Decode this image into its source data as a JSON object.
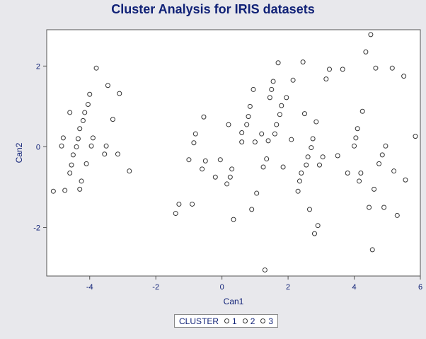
{
  "chart_data": {
    "type": "scatter",
    "title": "Cluster Analysis for IRIS datasets",
    "xlabel": "Can1",
    "ylabel": "Can2",
    "xlim": [
      -5.3,
      6.0
    ],
    "ylim": [
      -3.2,
      2.9
    ],
    "xticks": [
      -4,
      -2,
      0,
      2,
      4,
      6
    ],
    "xtick_labels": [
      "-4",
      "-2",
      "0",
      "2",
      "4",
      "6"
    ],
    "yticks": [
      -2,
      0,
      2
    ],
    "ytick_labels": [
      "-2",
      "0",
      "2"
    ],
    "grid": false,
    "legend": {
      "title": "CLUSTER",
      "entries": [
        "1",
        "2",
        "3"
      ],
      "placement": "bottom-center"
    },
    "marker_color": "#333333",
    "points": [
      [
        -5.1,
        -1.1
      ],
      [
        -4.85,
        0.02
      ],
      [
        -4.8,
        0.22
      ],
      [
        -4.75,
        -1.08
      ],
      [
        -4.6,
        0.85
      ],
      [
        -4.6,
        -0.65
      ],
      [
        -4.55,
        -0.45
      ],
      [
        -4.5,
        -0.2
      ],
      [
        -4.4,
        0.0
      ],
      [
        -4.35,
        0.2
      ],
      [
        -4.3,
        0.45
      ],
      [
        -4.3,
        -1.05
      ],
      [
        -4.25,
        -0.85
      ],
      [
        -4.2,
        0.65
      ],
      [
        -4.15,
        0.85
      ],
      [
        -4.1,
        -0.42
      ],
      [
        -4.05,
        1.05
      ],
      [
        -4.0,
        1.3
      ],
      [
        -3.95,
        0.02
      ],
      [
        -3.9,
        0.22
      ],
      [
        -3.8,
        1.95
      ],
      [
        -3.55,
        -0.18
      ],
      [
        -3.5,
        0.02
      ],
      [
        -3.45,
        1.52
      ],
      [
        -3.3,
        0.68
      ],
      [
        -3.15,
        -0.18
      ],
      [
        -3.1,
        1.32
      ],
      [
        -2.8,
        -0.6
      ],
      [
        -1.4,
        -1.65
      ],
      [
        -1.3,
        -1.42
      ],
      [
        -1.0,
        -0.32
      ],
      [
        -0.9,
        -1.42
      ],
      [
        -0.85,
        0.1
      ],
      [
        -0.8,
        0.32
      ],
      [
        -0.6,
        -0.55
      ],
      [
        -0.55,
        0.74
      ],
      [
        -0.5,
        -0.35
      ],
      [
        -0.2,
        -0.75
      ],
      [
        -0.05,
        -0.32
      ],
      [
        0.15,
        -0.92
      ],
      [
        0.2,
        0.55
      ],
      [
        0.25,
        -0.75
      ],
      [
        0.3,
        -0.55
      ],
      [
        0.35,
        -1.8
      ],
      [
        0.6,
        0.12
      ],
      [
        0.6,
        0.35
      ],
      [
        0.75,
        0.55
      ],
      [
        0.8,
        0.75
      ],
      [
        0.85,
        1.0
      ],
      [
        0.9,
        -1.55
      ],
      [
        0.95,
        1.42
      ],
      [
        1.0,
        0.12
      ],
      [
        1.05,
        -1.15
      ],
      [
        1.2,
        0.32
      ],
      [
        1.25,
        -0.5
      ],
      [
        1.3,
        -3.05
      ],
      [
        1.35,
        -0.3
      ],
      [
        1.4,
        0.15
      ],
      [
        1.45,
        1.22
      ],
      [
        1.5,
        1.42
      ],
      [
        1.55,
        1.62
      ],
      [
        1.6,
        0.32
      ],
      [
        1.65,
        0.55
      ],
      [
        1.7,
        2.08
      ],
      [
        1.75,
        0.8
      ],
      [
        1.8,
        1.02
      ],
      [
        1.85,
        -0.5
      ],
      [
        1.95,
        1.22
      ],
      [
        2.1,
        0.18
      ],
      [
        2.15,
        1.65
      ],
      [
        2.3,
        -1.1
      ],
      [
        2.35,
        -0.85
      ],
      [
        2.4,
        -0.65
      ],
      [
        2.45,
        2.1
      ],
      [
        2.5,
        0.82
      ],
      [
        2.55,
        -0.45
      ],
      [
        2.6,
        -0.25
      ],
      [
        2.65,
        -1.55
      ],
      [
        2.7,
        -0.02
      ],
      [
        2.75,
        0.2
      ],
      [
        2.8,
        -2.15
      ],
      [
        2.85,
        0.62
      ],
      [
        2.9,
        -1.95
      ],
      [
        2.95,
        -0.45
      ],
      [
        3.05,
        -0.25
      ],
      [
        3.15,
        1.68
      ],
      [
        3.25,
        1.92
      ],
      [
        3.5,
        -0.22
      ],
      [
        3.65,
        1.92
      ],
      [
        3.8,
        -0.65
      ],
      [
        4.0,
        0.02
      ],
      [
        4.05,
        0.22
      ],
      [
        4.1,
        0.45
      ],
      [
        4.15,
        -0.85
      ],
      [
        4.2,
        -0.65
      ],
      [
        4.25,
        0.88
      ],
      [
        4.35,
        2.35
      ],
      [
        4.45,
        -1.5
      ],
      [
        4.5,
        2.78
      ],
      [
        4.55,
        -2.55
      ],
      [
        4.6,
        -1.05
      ],
      [
        4.65,
        1.95
      ],
      [
        4.75,
        -0.42
      ],
      [
        4.85,
        -0.2
      ],
      [
        4.9,
        -1.5
      ],
      [
        4.95,
        0.02
      ],
      [
        5.15,
        1.95
      ],
      [
        5.2,
        -0.6
      ],
      [
        5.3,
        -1.7
      ],
      [
        5.5,
        1.75
      ],
      [
        5.55,
        -0.82
      ],
      [
        5.85,
        0.26
      ]
    ]
  }
}
